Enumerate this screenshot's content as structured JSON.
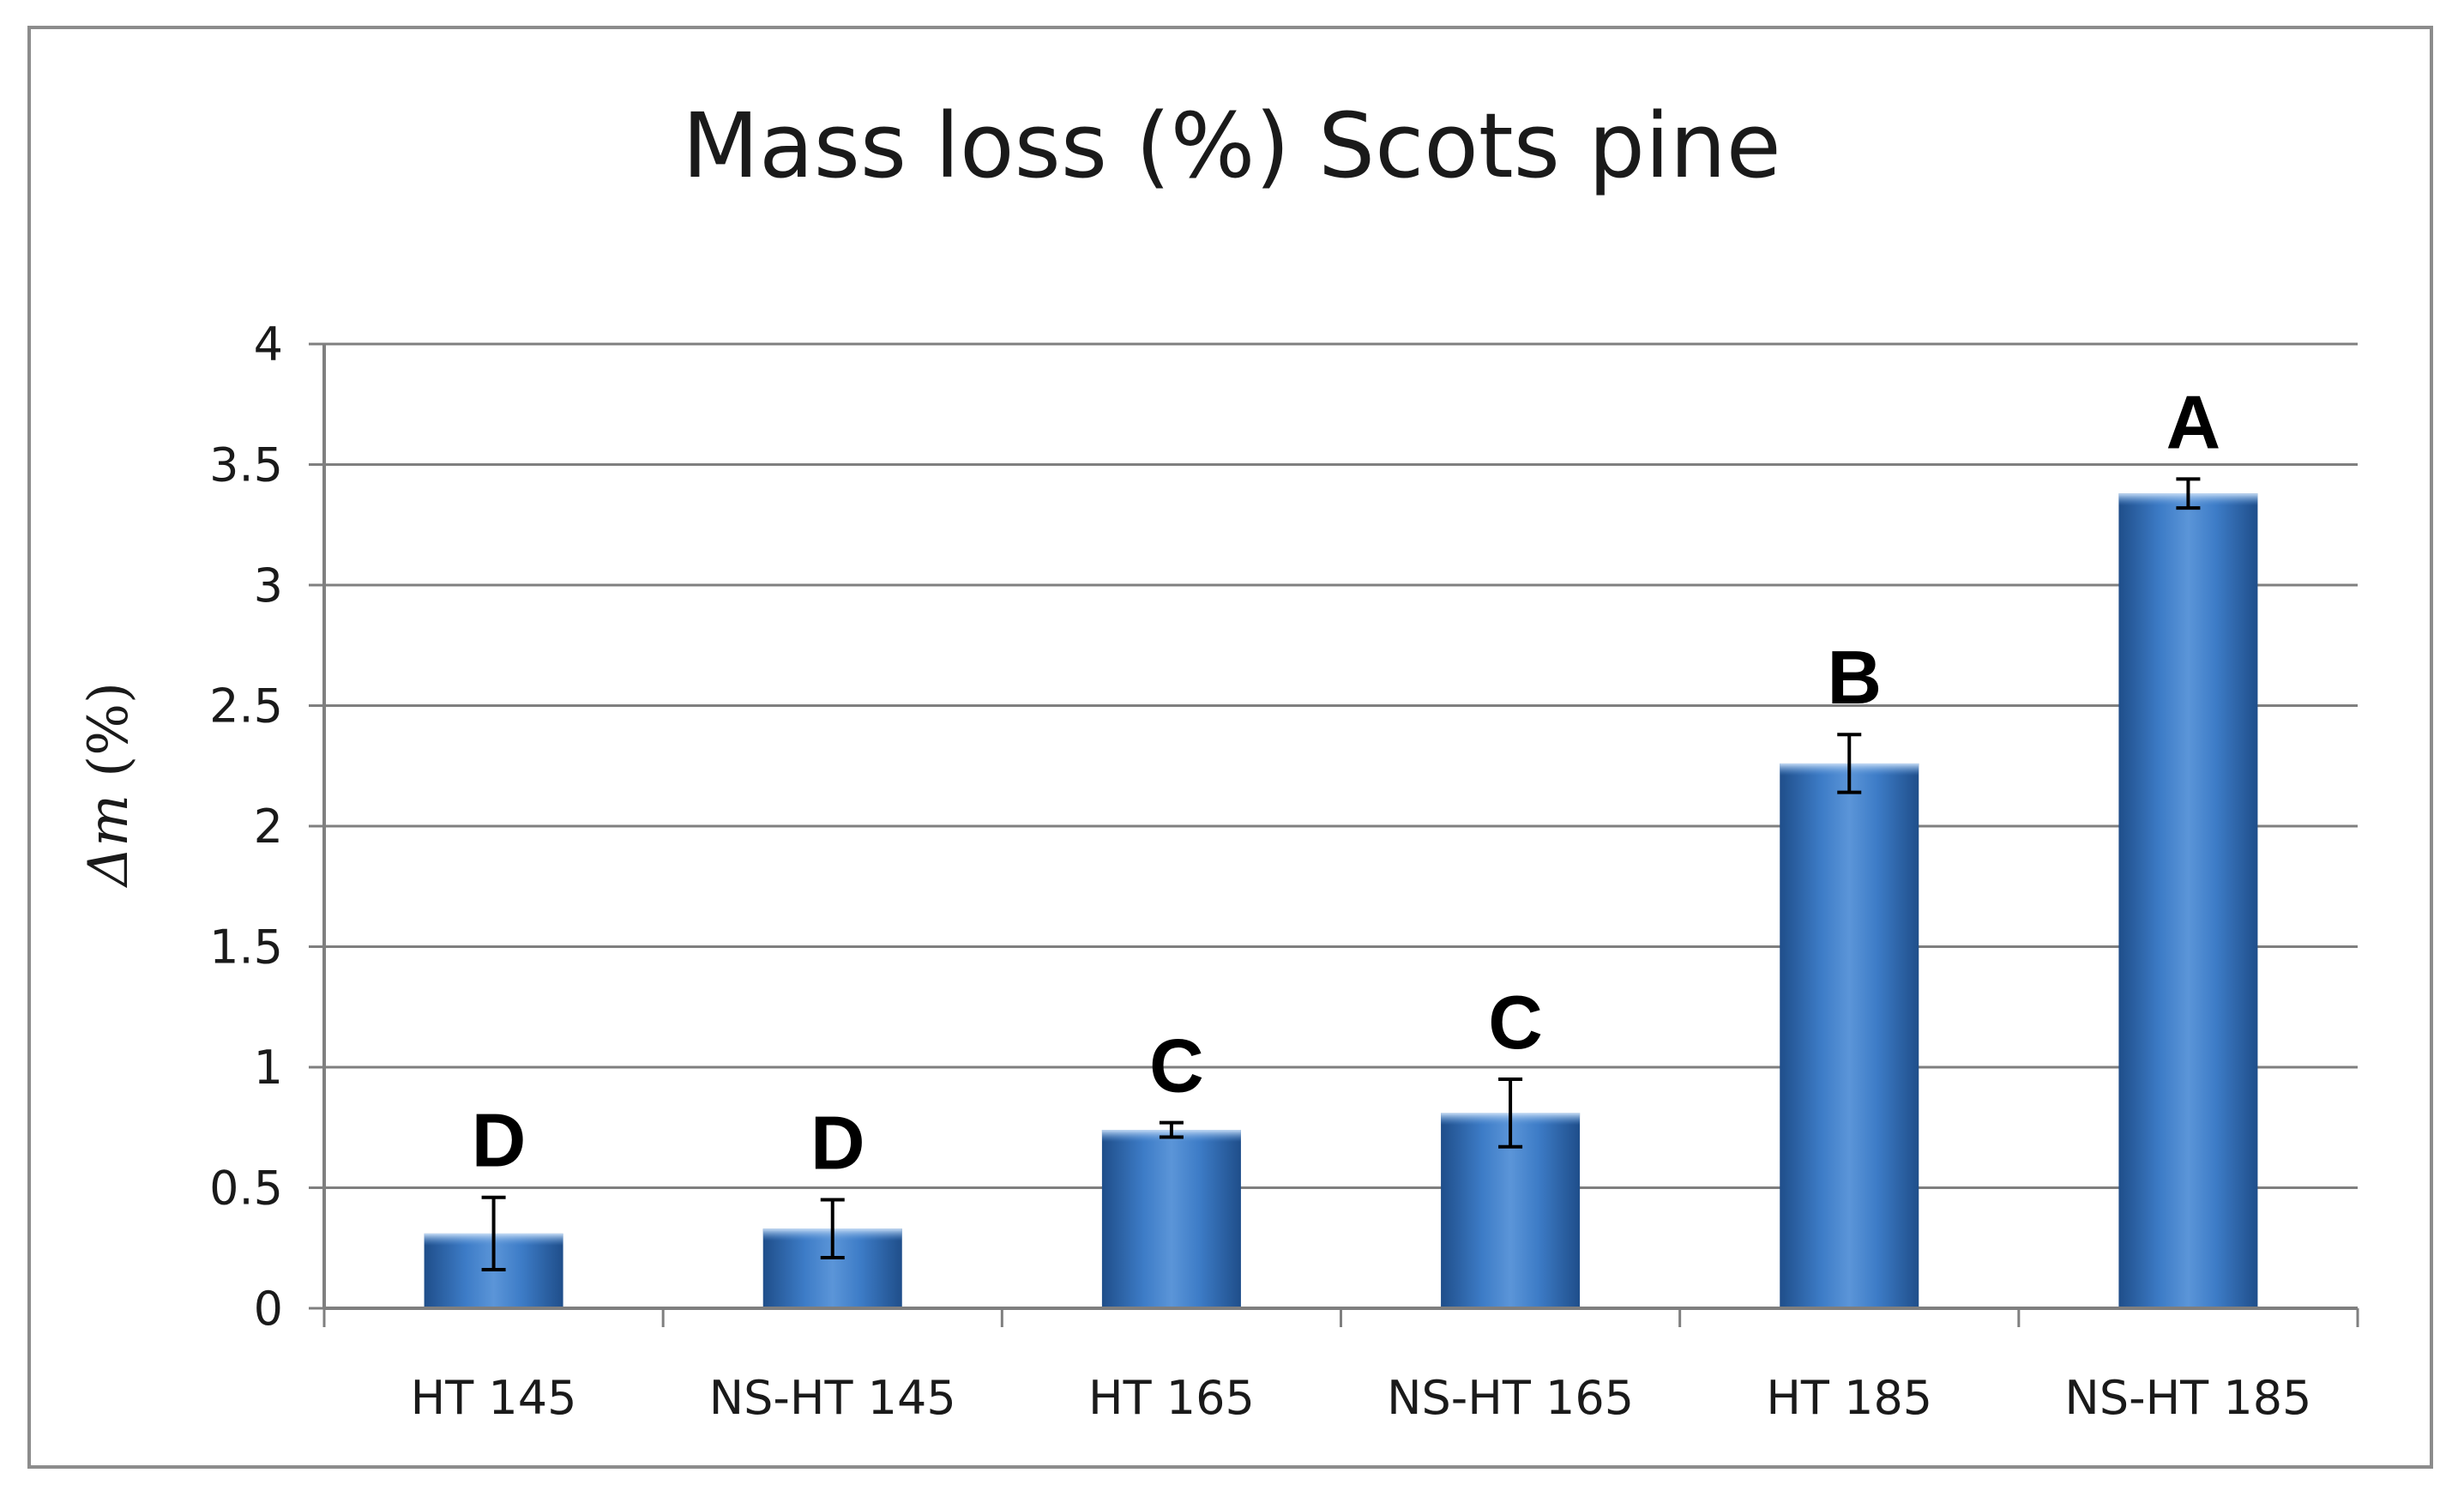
{
  "chart_data": {
    "type": "bar",
    "title": "Mass loss (%) Scots pine",
    "xlabel": "",
    "ylabel_symbol": "Δm",
    "ylabel_unit": " (%)",
    "categories": [
      "HT 145",
      "NS-HT 145",
      "HT 165",
      "NS-HT 165",
      "HT 185",
      "NS-HT 185"
    ],
    "values": [
      0.31,
      0.33,
      0.74,
      0.81,
      2.26,
      3.38
    ],
    "errors": [
      0.15,
      0.12,
      0.03,
      0.14,
      0.12,
      0.06
    ],
    "group_labels": [
      "D",
      "D",
      "C",
      "C",
      "B",
      "A"
    ],
    "ylim": [
      0,
      4
    ],
    "yticks": [
      0,
      0.5,
      1,
      1.5,
      2,
      2.5,
      3,
      3.5,
      4
    ],
    "ytick_labels": [
      "0",
      "0.5",
      "1",
      "1.5",
      "2",
      "2.5",
      "3",
      "3.5",
      "4"
    ],
    "grid": true,
    "legend": "none",
    "colors": {
      "bar_dark": "#1f4e8a",
      "bar_mid": "#3d7cc7",
      "bar_light": "#5b95d8",
      "bar_top": "#a9c8ee",
      "grid": "#7f7f7f",
      "axis": "#7f7f7f",
      "frame": "#8c8c8c"
    }
  }
}
